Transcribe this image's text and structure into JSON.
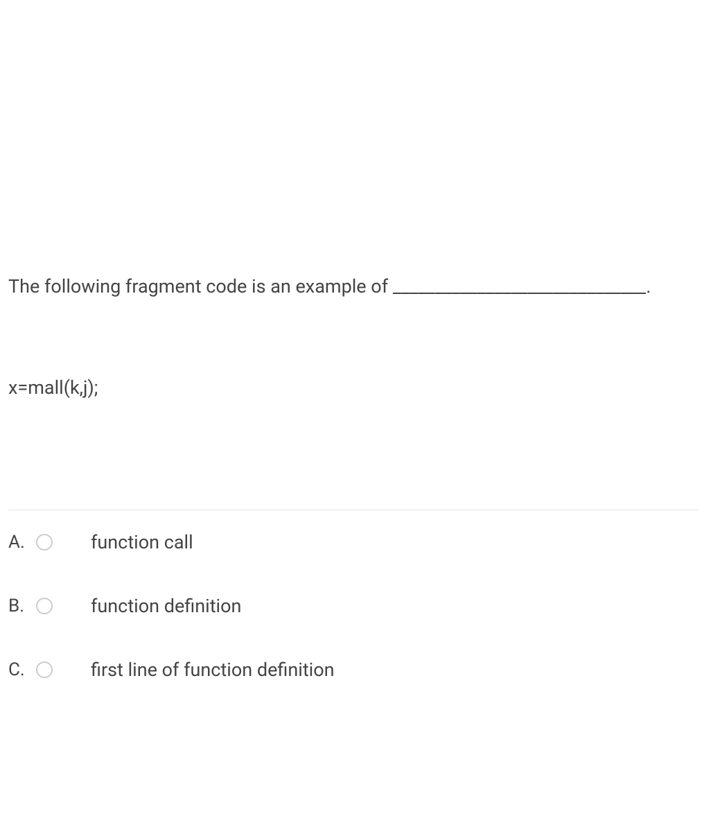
{
  "question": {
    "prompt": "The following fragment code is an example of ______________________________.",
    "code": "x=mall(k,j);"
  },
  "options": [
    {
      "letter": "A.",
      "text": "function call"
    },
    {
      "letter": "B.",
      "text": "function definition"
    },
    {
      "letter": "C.",
      "text": "first line of function definition"
    }
  ],
  "colors": {
    "background": "#ffffff",
    "text": "#444444",
    "divider": "#e5e5e5",
    "radio_border": "#cccccc"
  }
}
